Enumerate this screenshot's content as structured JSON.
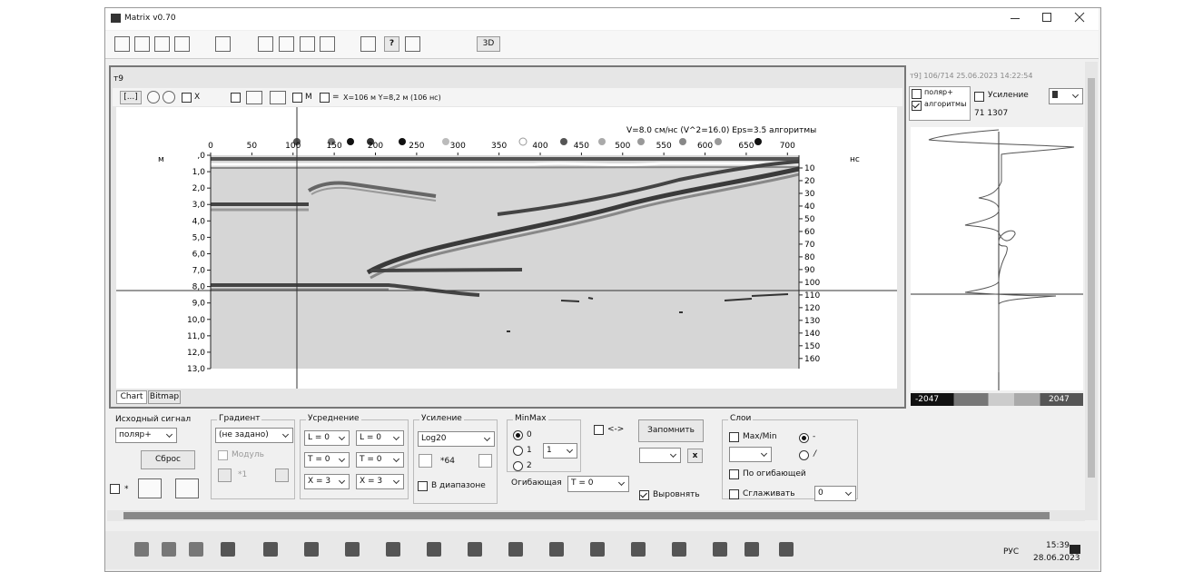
{
  "window": {
    "title": "Matrix v0.70"
  },
  "toolbar": {
    "help": "?",
    "button_3d": "3D"
  },
  "panel": {
    "title": "т9",
    "toolbar": {
      "frame_button": "[...]",
      "check_x": "X",
      "check_m": "M",
      "check_eq": "=",
      "cursor": "X=106 м Y=8,2 м (106 нс)"
    },
    "tabs": [
      "Chart",
      "Bitmap"
    ]
  },
  "radargram": {
    "annotation": "V=8.0 см/нс (V^2=16.0)  Eps=3.5  алгоритмы",
    "y_unit": "м",
    "y2_unit": "нс",
    "xlim": [
      0,
      714
    ],
    "xticks": [
      0,
      50,
      100,
      150,
      200,
      250,
      300,
      350,
      400,
      450,
      500,
      550,
      600,
      650,
      700
    ],
    "ylim": [
      0,
      13
    ],
    "yticks": [
      {
        "value": 0,
        "label": ",0"
      },
      {
        "value": 1,
        "label": "1,0"
      },
      {
        "value": 2,
        "label": "2,0"
      },
      {
        "value": 3,
        "label": "3,0"
      },
      {
        "value": 4,
        "label": "4,0"
      },
      {
        "value": 5,
        "label": "5,0"
      },
      {
        "value": 6,
        "label": "6,0"
      },
      {
        "value": 7,
        "label": "7,0"
      },
      {
        "value": 8,
        "label": "8,0"
      },
      {
        "value": 9,
        "label": "9,0"
      },
      {
        "value": 10,
        "label": "10,0"
      },
      {
        "value": 11,
        "label": "11,0"
      },
      {
        "value": 12,
        "label": "12,0"
      },
      {
        "value": 13,
        "label": "13,0"
      }
    ],
    "y2lim": [
      0,
      168
    ],
    "y2ticks": [
      10,
      20,
      30,
      40,
      50,
      60,
      70,
      80,
      90,
      100,
      110,
      120,
      130,
      140,
      150,
      160
    ]
  },
  "trace_panel": {
    "header": "т9] 106/714 25.06.2023 14:22:54",
    "check_polar": "поляр+",
    "check_algo": "алгоритмы",
    "check_gain": "Усиление",
    "info": "71 1307",
    "scale_min": "-2047",
    "scale_max": "2047"
  },
  "controls": {
    "source_label": "Исходный сигнал",
    "source_value": "поляр+",
    "reset": "Сброс",
    "star": "*",
    "gradient_label": "Градиент",
    "gradient_value": "(не задано)",
    "module": "Модуль",
    "gradient_factor": "*1",
    "averaging_label": "Усреднение",
    "avg_l1": "L = 0",
    "avg_l2": "L = 0",
    "avg_t1": "T = 0",
    "avg_t2": "T = 0",
    "avg_x1": "X = 3",
    "avg_x2": "X = 3",
    "gain_label": "Усиление",
    "gain_value": "Log20",
    "gain_factor": "*64",
    "in_range": "В диапазоне",
    "minmax_label": "MinMax",
    "radio_0": "0",
    "radio_1": "1",
    "radio_2": "2",
    "minmax_value": "1",
    "swap": "<->",
    "remember": "Запомнить",
    "close": "x",
    "envelope_label": "Огибающая",
    "envelope_value": "T = 0",
    "align": "Выровнять",
    "layers_label": "Слои",
    "maxmin": "Max/Min",
    "radio_dash": "-",
    "radio_slash": "/",
    "by_envelope": "По огибающей",
    "smooth": "Сглаживать",
    "smooth_value": "0"
  },
  "taskbar": {
    "language": "РУС",
    "time": "15:39",
    "date": "28.06.2023"
  }
}
